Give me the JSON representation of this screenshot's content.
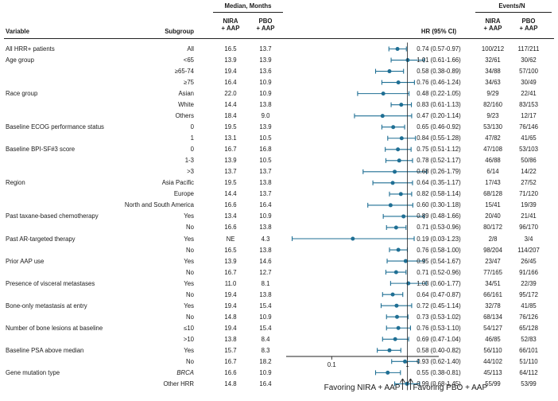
{
  "chart_data": {
    "type": "forest",
    "headers": {
      "variable": "Variable",
      "subgroup": "Subgroup",
      "median_group": "Median, Months",
      "nira": "NIRA\n+ AAP",
      "pbo": "PBO\n+ AAP",
      "hr": "HR (95% CI)",
      "events_group": "Events/N",
      "events_nira": "NIRA\n+ AAP",
      "events_pbo": "PBO\n+ AAP"
    },
    "rows": [
      {
        "variable": "All HRR+ patients",
        "subgroup": "All",
        "nira": "16.5",
        "pbo": "13.7",
        "hr": 0.74,
        "lo": 0.57,
        "hi": 0.97,
        "hr_text": "0.74 (0.57-0.97)",
        "ev_nira": "100/212",
        "ev_pbo": "117/211"
      },
      {
        "variable": "Age group",
        "subgroup": "<65",
        "nira": "13.9",
        "pbo": "13.9",
        "hr": 1.01,
        "lo": 0.61,
        "hi": 1.66,
        "hr_text": "1.01 (0.61-1.66)",
        "ev_nira": "32/61",
        "ev_pbo": "30/62"
      },
      {
        "variable": "",
        "subgroup": "≥65-74",
        "nira": "19.4",
        "pbo": "13.6",
        "hr": 0.58,
        "lo": 0.38,
        "hi": 0.89,
        "hr_text": "0.58 (0.38-0.89)",
        "ev_nira": "34/88",
        "ev_pbo": "57/100"
      },
      {
        "variable": "",
        "subgroup": "≥75",
        "nira": "16.4",
        "pbo": "10.9",
        "hr": 0.76,
        "lo": 0.46,
        "hi": 1.24,
        "hr_text": "0.76 (0.46-1.24)",
        "ev_nira": "34/63",
        "ev_pbo": "30/49"
      },
      {
        "variable": "Race group",
        "subgroup": "Asian",
        "nira": "22.0",
        "pbo": "10.9",
        "hr": 0.48,
        "lo": 0.22,
        "hi": 1.05,
        "hr_text": "0.48 (0.22-1.05)",
        "ev_nira": "9/29",
        "ev_pbo": "22/41"
      },
      {
        "variable": "",
        "subgroup": "White",
        "nira": "14.4",
        "pbo": "13.8",
        "hr": 0.83,
        "lo": 0.61,
        "hi": 1.13,
        "hr_text": "0.83 (0.61-1.13)",
        "ev_nira": "82/160",
        "ev_pbo": "83/153"
      },
      {
        "variable": "",
        "subgroup": "Others",
        "nira": "18.4",
        "pbo": "9.0",
        "hr": 0.47,
        "lo": 0.2,
        "hi": 1.14,
        "hr_text": "0.47 (0.20-1.14)",
        "ev_nira": "9/23",
        "ev_pbo": "12/17"
      },
      {
        "variable": "Baseline ECOG performance status",
        "subgroup": "0",
        "nira": "19.5",
        "pbo": "13.9",
        "hr": 0.65,
        "lo": 0.46,
        "hi": 0.92,
        "hr_text": "0.65 (0.46-0.92)",
        "ev_nira": "53/130",
        "ev_pbo": "76/146"
      },
      {
        "variable": "",
        "subgroup": "1",
        "nira": "13.1",
        "pbo": "10.5",
        "hr": 0.84,
        "lo": 0.55,
        "hi": 1.28,
        "hr_text": "0.84 (0.55-1.28)",
        "ev_nira": "47/82",
        "ev_pbo": "41/65"
      },
      {
        "variable": "Baseline BPI-SF#3 score",
        "subgroup": "0",
        "nira": "16.7",
        "pbo": "16.8",
        "hr": 0.75,
        "lo": 0.51,
        "hi": 1.12,
        "hr_text": "0.75 (0.51-1.12)",
        "ev_nira": "47/108",
        "ev_pbo": "53/103"
      },
      {
        "variable": "",
        "subgroup": "1-3",
        "nira": "13.9",
        "pbo": "10.5",
        "hr": 0.78,
        "lo": 0.52,
        "hi": 1.17,
        "hr_text": "0.78 (0.52-1.17)",
        "ev_nira": "46/88",
        "ev_pbo": "50/86"
      },
      {
        "variable": "",
        "subgroup": ">3",
        "nira": "13.7",
        "pbo": "13.7",
        "hr": 0.68,
        "lo": 0.26,
        "hi": 1.79,
        "hr_text": "0.68 (0.26-1.79)",
        "ev_nira": "6/14",
        "ev_pbo": "14/22"
      },
      {
        "variable": "Region",
        "subgroup": "Asia Pacific",
        "nira": "19.5",
        "pbo": "13.8",
        "hr": 0.64,
        "lo": 0.35,
        "hi": 1.17,
        "hr_text": "0.64 (0.35-1.17)",
        "ev_nira": "17/43",
        "ev_pbo": "27/52"
      },
      {
        "variable": "",
        "subgroup": "Europe",
        "nira": "14.4",
        "pbo": "13.7",
        "hr": 0.82,
        "lo": 0.58,
        "hi": 1.14,
        "hr_text": "0.82 (0.58-1.14)",
        "ev_nira": "68/128",
        "ev_pbo": "71/120"
      },
      {
        "variable": "",
        "subgroup": "North and South America",
        "nira": "16.6",
        "pbo": "16.4",
        "hr": 0.6,
        "lo": 0.3,
        "hi": 1.18,
        "hr_text": "0.60 (0.30-1.18)",
        "ev_nira": "15/41",
        "ev_pbo": "19/39"
      },
      {
        "variable": "Past taxane-based chemotherapy",
        "subgroup": "Yes",
        "nira": "13.4",
        "pbo": "10.9",
        "hr": 0.89,
        "lo": 0.48,
        "hi": 1.66,
        "hr_text": "0.89 (0.48-1.66)",
        "ev_nira": "20/40",
        "ev_pbo": "21/41"
      },
      {
        "variable": "",
        "subgroup": "No",
        "nira": "16.6",
        "pbo": "13.8",
        "hr": 0.71,
        "lo": 0.53,
        "hi": 0.96,
        "hr_text": "0.71 (0.53-0.96)",
        "ev_nira": "80/172",
        "ev_pbo": "96/170"
      },
      {
        "variable": "Past AR-targeted therapy",
        "subgroup": "Yes",
        "nira": "NE",
        "pbo": "4.3",
        "hr": 0.19,
        "lo": 0.03,
        "hi": 1.23,
        "hr_text": "0.19 (0.03-1.23)",
        "ev_nira": "2/8",
        "ev_pbo": "3/4"
      },
      {
        "variable": "",
        "subgroup": "No",
        "nira": "16.5",
        "pbo": "13.8",
        "hr": 0.76,
        "lo": 0.58,
        "hi": 1.0,
        "hr_text": "0.76 (0.58-1.00)",
        "ev_nira": "98/204",
        "ev_pbo": "114/207"
      },
      {
        "variable": "Prior AAP use",
        "subgroup": "Yes",
        "nira": "13.9",
        "pbo": "14.6",
        "hr": 0.95,
        "lo": 0.54,
        "hi": 1.67,
        "hr_text": "0.95 (0.54-1.67)",
        "ev_nira": "23/47",
        "ev_pbo": "26/45"
      },
      {
        "variable": "",
        "subgroup": "No",
        "nira": "16.7",
        "pbo": "12.7",
        "hr": 0.71,
        "lo": 0.52,
        "hi": 0.96,
        "hr_text": "0.71 (0.52-0.96)",
        "ev_nira": "77/165",
        "ev_pbo": "91/166"
      },
      {
        "variable": "Presence of visceral metastases",
        "subgroup": "Yes",
        "nira": "11.0",
        "pbo": "8.1",
        "hr": 1.03,
        "lo": 0.6,
        "hi": 1.77,
        "hr_text": "1.03 (0.60-1.77)",
        "ev_nira": "34/51",
        "ev_pbo": "22/39"
      },
      {
        "variable": "",
        "subgroup": "No",
        "nira": "19.4",
        "pbo": "13.8",
        "hr": 0.64,
        "lo": 0.47,
        "hi": 0.87,
        "hr_text": "0.64 (0.47-0.87)",
        "ev_nira": "66/161",
        "ev_pbo": "95/172"
      },
      {
        "variable": "Bone-only metastasis at entry",
        "subgroup": "Yes",
        "nira": "19.4",
        "pbo": "15.4",
        "hr": 0.72,
        "lo": 0.45,
        "hi": 1.14,
        "hr_text": "0.72 (0.45-1.14)",
        "ev_nira": "32/78",
        "ev_pbo": "41/85"
      },
      {
        "variable": "",
        "subgroup": "No",
        "nira": "14.8",
        "pbo": "10.9",
        "hr": 0.73,
        "lo": 0.53,
        "hi": 1.02,
        "hr_text": "0.73 (0.53-1.02)",
        "ev_nira": "68/134",
        "ev_pbo": "76/126"
      },
      {
        "variable": "Number of bone lesions at baseline",
        "subgroup": "≤10",
        "nira": "19.4",
        "pbo": "15.4",
        "hr": 0.76,
        "lo": 0.53,
        "hi": 1.1,
        "hr_text": "0.76 (0.53-1.10)",
        "ev_nira": "54/127",
        "ev_pbo": "65/128"
      },
      {
        "variable": "",
        "subgroup": ">10",
        "nira": "13.8",
        "pbo": "8.4",
        "hr": 0.69,
        "lo": 0.47,
        "hi": 1.04,
        "hr_text": "0.69 (0.47-1.04)",
        "ev_nira": "46/85",
        "ev_pbo": "52/83"
      },
      {
        "variable": "Baseline PSA above median",
        "subgroup": "Yes",
        "nira": "15.7",
        "pbo": "8.3",
        "hr": 0.58,
        "lo": 0.4,
        "hi": 0.82,
        "hr_text": "0.58 (0.40-0.82)",
        "ev_nira": "56/110",
        "ev_pbo": "66/101"
      },
      {
        "variable": "",
        "subgroup": "No",
        "nira": "16.7",
        "pbo": "18.2",
        "hr": 0.93,
        "lo": 0.62,
        "hi": 1.4,
        "hr_text": "0.93 (0.62-1.40)",
        "ev_nira": "44/102",
        "ev_pbo": "51/110"
      },
      {
        "variable": "Gene mutation type",
        "subgroup": "BRCA",
        "subgroup_italic": true,
        "nira": "16.6",
        "pbo": "10.9",
        "hr": 0.55,
        "lo": 0.38,
        "hi": 0.81,
        "hr_text": "0.55 (0.38-0.81)",
        "ev_nira": "45/113",
        "ev_pbo": "64/112"
      },
      {
        "variable": "",
        "subgroup": "Other HRR",
        "nira": "14.8",
        "pbo": "16.4",
        "hr": 0.99,
        "lo": 0.68,
        "hi": 1.45,
        "hr_text": "0.99 (0.68-1.45)",
        "ev_nira": "55/99",
        "ev_pbo": "53/99"
      }
    ],
    "x_axis": {
      "scale": "log",
      "ticks": [
        0.1,
        1
      ],
      "tick_labels": [
        "0.1",
        "1"
      ],
      "range": [
        0.025,
        2.6
      ],
      "reference": 1
    },
    "favoring_left": "Favoring NIRA + AAP",
    "favoring_right": "Favoring PBO + AAP",
    "point_color": "#1f6f94"
  }
}
